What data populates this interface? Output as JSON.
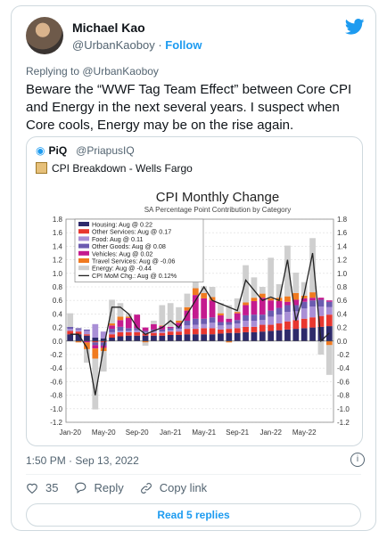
{
  "author": {
    "name": "Michael Kao",
    "handle": "@UrbanKaoboy",
    "follow_label": "Follow"
  },
  "replying_to": "Replying to @UrbanKaoboy",
  "tweet_text": "Beware the “WWF Tag Team Effect” between Core CPI and Energy in the next several years. I suspect when Core cools, Energy may be on the rise again.",
  "quote": {
    "name": "PiQ",
    "handle": "@PriapusIQ",
    "subtitle": "CPI Breakdown - Wells Fargo"
  },
  "timestamp": "1:50 PM · Sep 13, 2022",
  "actions": {
    "likes": "35",
    "reply_label": "Reply",
    "copy_label": "Copy link"
  },
  "read_replies_label": "Read 5 replies",
  "colors": {
    "accent": "#1d9bf0"
  },
  "chart_data": {
    "type": "bar",
    "title": "CPI Monthly Change",
    "subtitle": "SA Percentage Point Contribution by Category",
    "ylim": [
      -1.2,
      1.8
    ],
    "yticks": [
      "1.8",
      "1.6",
      "1.4",
      "1.2",
      "1.0",
      "0.8",
      "0.6",
      "0.4",
      "0.2",
      "0.0",
      "-0.2",
      "-0.4",
      "-0.6",
      "-0.8",
      "-1.0",
      "-1.2"
    ],
    "xticks": [
      "Jan-20",
      "May-20",
      "Sep-20",
      "Jan-21",
      "May-21",
      "Sep-21",
      "Jan-22",
      "May-22"
    ],
    "legend": [
      {
        "label": "Housing: Aug @ 0.22",
        "color": "#2e2a6b"
      },
      {
        "label": "Other Services: Aug @ 0.17",
        "color": "#e8372f"
      },
      {
        "label": "Food: Aug @ 0.11",
        "color": "#a98fd6"
      },
      {
        "label": "Other Goods: Aug @ 0.08",
        "color": "#6b5bb0"
      },
      {
        "label": "Vehicles: Aug @ 0.02",
        "color": "#c41a8f"
      },
      {
        "label": "Travel Services: Aug @ -0.06",
        "color": "#f07a20"
      },
      {
        "label": "Energy: Aug @ -0.44",
        "color": "#cfcfcf"
      },
      {
        "label": "CPI MoM Chg.: Aug @ 0.12%",
        "color": "#222222"
      }
    ],
    "series": [
      {
        "name": "Housing",
        "values": [
          0.1,
          0.1,
          0.08,
          0.05,
          0.04,
          0.05,
          0.07,
          0.08,
          0.08,
          0.08,
          0.08,
          0.08,
          0.09,
          0.09,
          0.1,
          0.1,
          0.1,
          0.1,
          0.11,
          0.12,
          0.12,
          0.13,
          0.13,
          0.14,
          0.15,
          0.16,
          0.17,
          0.18,
          0.19,
          0.2,
          0.21,
          0.22
        ]
      },
      {
        "name": "Other Services",
        "values": [
          0.05,
          0.04,
          0.02,
          -0.02,
          -0.02,
          0.05,
          0.06,
          0.05,
          0.05,
          0.03,
          0.04,
          0.04,
          0.05,
          0.05,
          0.08,
          0.08,
          0.09,
          0.09,
          0.06,
          0.06,
          0.07,
          0.08,
          0.08,
          0.1,
          0.09,
          0.1,
          0.12,
          0.13,
          0.14,
          0.15,
          0.16,
          0.17
        ]
      },
      {
        "name": "Food",
        "values": [
          0.03,
          0.03,
          0.05,
          0.2,
          0.1,
          0.03,
          0.02,
          0.02,
          0.03,
          0.02,
          0.03,
          0.02,
          0.02,
          0.04,
          0.05,
          0.06,
          0.06,
          0.08,
          0.06,
          0.06,
          0.07,
          0.09,
          0.09,
          0.07,
          0.12,
          0.13,
          0.14,
          0.13,
          0.15,
          0.16,
          0.14,
          0.11
        ]
      },
      {
        "name": "Other Goods",
        "values": [
          0.03,
          0.02,
          0.02,
          -0.04,
          -0.05,
          0.05,
          0.06,
          0.04,
          0.03,
          0.02,
          0.02,
          0.03,
          0.03,
          0.04,
          0.07,
          0.09,
          0.08,
          0.08,
          0.05,
          0.04,
          0.05,
          0.08,
          0.09,
          0.08,
          0.09,
          0.1,
          0.1,
          0.09,
          0.1,
          0.09,
          0.1,
          0.08
        ]
      },
      {
        "name": "Vehicles",
        "values": [
          0.0,
          0.0,
          -0.02,
          -0.05,
          -0.03,
          0.05,
          0.1,
          0.15,
          0.2,
          0.05,
          0.08,
          0.05,
          0.02,
          0.05,
          0.15,
          0.35,
          0.3,
          0.25,
          0.1,
          0.05,
          0.1,
          0.15,
          0.2,
          0.25,
          0.15,
          0.1,
          0.05,
          0.08,
          0.05,
          0.04,
          0.03,
          0.02
        ]
      },
      {
        "name": "Travel Services",
        "values": [
          0.0,
          -0.02,
          -0.1,
          -0.15,
          -0.05,
          0.03,
          0.05,
          0.02,
          0.0,
          -0.02,
          0.0,
          0.01,
          0.0,
          0.03,
          0.05,
          0.1,
          0.08,
          0.05,
          0.03,
          -0.02,
          0.02,
          0.04,
          0.05,
          0.06,
          0.03,
          0.05,
          0.08,
          0.1,
          0.04,
          0.08,
          0.0,
          -0.06
        ]
      },
      {
        "name": "Energy",
        "values": [
          0.2,
          0.0,
          -0.2,
          -0.75,
          -0.3,
          0.35,
          0.2,
          0.05,
          0.0,
          -0.05,
          0.05,
          0.3,
          0.35,
          0.2,
          0.2,
          0.1,
          0.1,
          0.15,
          0.15,
          0.2,
          0.2,
          0.55,
          0.3,
          0.1,
          0.6,
          0.2,
          0.75,
          0.3,
          0.2,
          0.8,
          -0.2,
          -0.44
        ]
      },
      {
        "name": "CPI MoM Chg.",
        "values": [
          0.1,
          0.1,
          -0.1,
          -0.8,
          -0.1,
          0.5,
          0.5,
          0.4,
          0.2,
          0.1,
          0.15,
          0.2,
          0.3,
          0.2,
          0.4,
          0.6,
          0.8,
          0.6,
          0.55,
          0.5,
          0.45,
          0.9,
          0.75,
          0.6,
          0.65,
          0.6,
          1.2,
          0.3,
          0.7,
          1.3,
          0.0,
          0.12
        ]
      }
    ]
  }
}
